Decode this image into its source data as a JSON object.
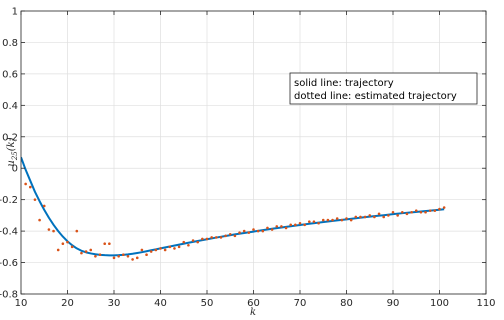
{
  "chart_data": {
    "type": "line",
    "title": "",
    "xlabel": "k",
    "ylabel": "u25(k)",
    "ylabel_main": "u",
    "ylabel_sub": "25",
    "ylabel_arg": "(k)",
    "xlim": [
      10,
      110
    ],
    "ylim": [
      -0.8,
      1
    ],
    "xticks": [
      10,
      20,
      30,
      40,
      50,
      60,
      70,
      80,
      90,
      100,
      110
    ],
    "yticks": [
      -0.8,
      -0.6,
      -0.4,
      -0.2,
      0,
      0.2,
      0.4,
      0.6,
      0.8,
      1
    ],
    "ytick_labels": [
      "-0.8",
      "-0.6",
      "-0.4",
      "-0.2",
      "0",
      "0.2",
      "0.4",
      "0.6",
      "0.8",
      "1"
    ],
    "grid": true,
    "legend_placement": "upper-right-center",
    "legend_lines": [
      "solid line: trajectory",
      "dotted line: estimated trajectory"
    ],
    "colors": {
      "trajectory": "#0072BD",
      "estimated": "#D95319",
      "grid": "#dfdfdf",
      "axis": "#262626"
    },
    "series": [
      {
        "name": "trajectory",
        "style": "solid",
        "x": [
          10,
          11,
          12,
          13,
          14,
          15,
          16,
          17,
          18,
          19,
          20,
          21,
          22,
          23,
          24,
          25,
          26,
          27,
          28,
          29,
          30,
          31,
          32,
          33,
          34,
          35,
          36,
          37,
          38,
          39,
          40,
          42,
          44,
          46,
          48,
          50,
          52,
          54,
          56,
          58,
          60,
          62,
          64,
          66,
          68,
          70,
          72,
          74,
          76,
          78,
          80,
          82,
          84,
          86,
          88,
          90,
          92,
          94,
          96,
          98,
          100,
          101
        ],
        "y": [
          0.07,
          -0.01,
          -0.08,
          -0.15,
          -0.21,
          -0.265,
          -0.315,
          -0.36,
          -0.4,
          -0.435,
          -0.465,
          -0.49,
          -0.51,
          -0.525,
          -0.535,
          -0.542,
          -0.547,
          -0.551,
          -0.553,
          -0.554,
          -0.554,
          -0.553,
          -0.551,
          -0.548,
          -0.544,
          -0.539,
          -0.534,
          -0.528,
          -0.522,
          -0.516,
          -0.51,
          -0.498,
          -0.486,
          -0.474,
          -0.463,
          -0.452,
          -0.441,
          -0.431,
          -0.421,
          -0.412,
          -0.403,
          -0.394,
          -0.385,
          -0.377,
          -0.369,
          -0.361,
          -0.353,
          -0.346,
          -0.339,
          -0.332,
          -0.325,
          -0.318,
          -0.311,
          -0.305,
          -0.299,
          -0.292,
          -0.286,
          -0.281,
          -0.275,
          -0.27,
          -0.264,
          -0.261
        ]
      },
      {
        "name": "estimated trajectory",
        "style": "dotted",
        "x": [
          11,
          12,
          13,
          14,
          15,
          16,
          17,
          18,
          19,
          20,
          21,
          22,
          23,
          24,
          25,
          26,
          27,
          28,
          29,
          30,
          31,
          32,
          33,
          34,
          35,
          36,
          37,
          38,
          39,
          40,
          41,
          42,
          43,
          44,
          45,
          46,
          47,
          48,
          49,
          50,
          51,
          52,
          53,
          54,
          55,
          56,
          57,
          58,
          59,
          60,
          61,
          62,
          63,
          64,
          65,
          66,
          67,
          68,
          69,
          70,
          71,
          72,
          73,
          74,
          75,
          76,
          77,
          78,
          79,
          80,
          81,
          82,
          83,
          84,
          85,
          86,
          87,
          88,
          89,
          90,
          91,
          92,
          93,
          94,
          95,
          96,
          97,
          98,
          99,
          100,
          101
        ],
        "y": [
          -0.1,
          -0.12,
          -0.2,
          -0.33,
          -0.24,
          -0.39,
          -0.4,
          -0.52,
          -0.48,
          -0.47,
          -0.5,
          -0.4,
          -0.54,
          -0.53,
          -0.52,
          -0.56,
          -0.55,
          -0.48,
          -0.48,
          -0.57,
          -0.56,
          -0.55,
          -0.56,
          -0.58,
          -0.57,
          -0.52,
          -0.55,
          -0.53,
          -0.52,
          -0.51,
          -0.52,
          -0.5,
          -0.51,
          -0.5,
          -0.47,
          -0.49,
          -0.46,
          -0.47,
          -0.45,
          -0.45,
          -0.44,
          -0.44,
          -0.44,
          -0.43,
          -0.42,
          -0.43,
          -0.41,
          -0.4,
          -0.41,
          -0.39,
          -0.4,
          -0.4,
          -0.38,
          -0.39,
          -0.37,
          -0.37,
          -0.38,
          -0.36,
          -0.36,
          -0.35,
          -0.36,
          -0.34,
          -0.34,
          -0.35,
          -0.33,
          -0.33,
          -0.33,
          -0.32,
          -0.33,
          -0.32,
          -0.33,
          -0.31,
          -0.31,
          -0.31,
          -0.3,
          -0.31,
          -0.29,
          -0.31,
          -0.3,
          -0.28,
          -0.3,
          -0.28,
          -0.29,
          -0.28,
          -0.27,
          -0.28,
          -0.28,
          -0.27,
          -0.27,
          -0.26,
          -0.25
        ]
      }
    ]
  }
}
